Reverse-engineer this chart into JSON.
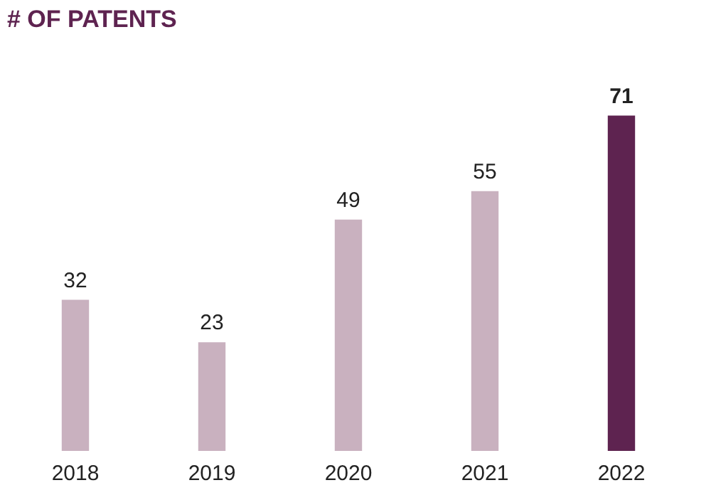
{
  "chart_data": {
    "type": "bar",
    "title": "# OF PATENTS",
    "categories": [
      "2018",
      "2019",
      "2020",
      "2021",
      "2022"
    ],
    "values": [
      32,
      23,
      49,
      55,
      71
    ],
    "colors": [
      "#c9b1bf",
      "#c9b1bf",
      "#c9b1bf",
      "#c9b1bf",
      "#5e2350"
    ],
    "data_labels": true
  }
}
